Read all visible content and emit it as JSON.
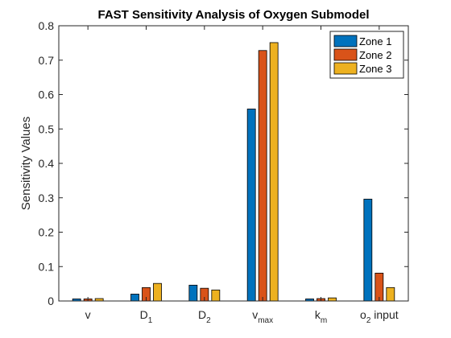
{
  "chart_data": {
    "type": "bar",
    "title": "FAST Sensitivity Analysis of Oxygen Submodel",
    "xlabel": "",
    "ylabel": "Sensitivity Values",
    "ylim": [
      0,
      0.8
    ],
    "yticks": [
      0,
      0.1,
      0.2,
      0.3,
      0.4,
      0.5,
      0.6,
      0.7,
      0.8
    ],
    "ytick_labels": [
      "0",
      "0.1",
      "0.2",
      "0.3",
      "0.4",
      "0.5",
      "0.6",
      "0.7",
      "0.8"
    ],
    "categories": [
      {
        "base": "v",
        "sub": "",
        "rest": ""
      },
      {
        "base": "D",
        "sub": "1",
        "rest": ""
      },
      {
        "base": "D",
        "sub": "2",
        "rest": ""
      },
      {
        "base": "v",
        "sub": "max",
        "rest": ""
      },
      {
        "base": "k",
        "sub": "m",
        "rest": ""
      },
      {
        "base": "o",
        "sub": "2",
        "rest": " input"
      }
    ],
    "series": [
      {
        "name": "Zone 1",
        "color": "#0072BD",
        "values": [
          0.006,
          0.02,
          0.046,
          0.558,
          0.006,
          0.296
        ]
      },
      {
        "name": "Zone 2",
        "color": "#D95319",
        "values": [
          0.006,
          0.039,
          0.037,
          0.728,
          0.007,
          0.081
        ]
      },
      {
        "name": "Zone 3",
        "color": "#EDB120",
        "values": [
          0.007,
          0.051,
          0.032,
          0.751,
          0.009,
          0.039
        ]
      }
    ],
    "grid": false,
    "legend_position": "top-right",
    "axis_color": "#262626"
  }
}
